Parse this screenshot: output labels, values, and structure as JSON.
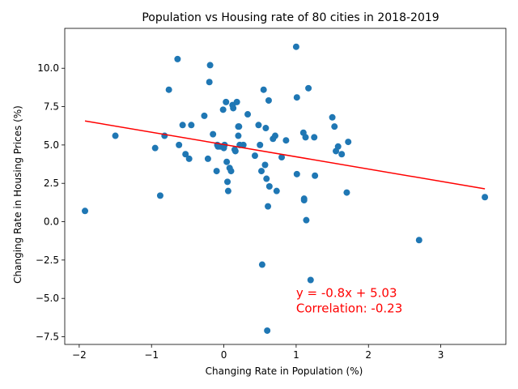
{
  "chart_data": {
    "type": "scatter",
    "title": "Population vs Housing rate of 80 cities in 2018-2019",
    "xlabel": "Changing Rate in Population (%)",
    "ylabel": "Changing Rate in Housing Prices (%)",
    "xlim": [
      -2.2,
      3.9
    ],
    "ylim": [
      -8.0,
      12.6
    ],
    "xticks": [
      -2,
      -1,
      0,
      1,
      2,
      3
    ],
    "yticks": [
      -7.5,
      -5.0,
      -2.5,
      0.0,
      2.5,
      5.0,
      7.5,
      10.0
    ],
    "xtick_labels": [
      "−2",
      "−1",
      "0",
      "1",
      "2",
      "3"
    ],
    "ytick_labels": [
      "−7.5",
      "−5.0",
      "−2.5",
      "0.0",
      "2.5",
      "5.0",
      "7.5",
      "10.0"
    ],
    "grid": false,
    "point_color": "#1f77b4",
    "line_color": "#ff0000",
    "regression": {
      "slope": -0.8,
      "intercept": 5.03,
      "x_range": [
        -1.92,
        3.61
      ]
    },
    "annotation": {
      "lines": [
        "y = -0.8x + 5.03",
        "Correlation: -0.23"
      ],
      "anchor": [
        1.0,
        -4.9
      ]
    },
    "points": [
      [
        -1.92,
        0.7
      ],
      [
        -1.5,
        5.6
      ],
      [
        -0.95,
        4.8
      ],
      [
        -0.88,
        1.7
      ],
      [
        -0.82,
        5.6
      ],
      [
        -0.76,
        8.6
      ],
      [
        -0.64,
        10.6
      ],
      [
        -0.62,
        5.0
      ],
      [
        -0.57,
        6.3
      ],
      [
        -0.53,
        4.4
      ],
      [
        -0.48,
        4.1
      ],
      [
        -0.45,
        6.3
      ],
      [
        -0.27,
        6.9
      ],
      [
        -0.22,
        4.1
      ],
      [
        -0.2,
        9.1
      ],
      [
        -0.19,
        10.2
      ],
      [
        -0.15,
        5.7
      ],
      [
        -0.1,
        3.3
      ],
      [
        -0.09,
        5.0
      ],
      [
        -0.05,
        4.9
      ],
      [
        -0.01,
        7.3
      ],
      [
        0.0,
        4.8
      ],
      [
        0.01,
        5.0
      ],
      [
        0.03,
        7.8
      ],
      [
        0.04,
        3.9
      ],
      [
        0.05,
        2.6
      ],
      [
        0.06,
        2.0
      ],
      [
        0.08,
        3.5
      ],
      [
        0.1,
        3.3
      ],
      [
        0.12,
        7.6
      ],
      [
        0.13,
        7.4
      ],
      [
        0.15,
        4.7
      ],
      [
        0.16,
        4.6
      ],
      [
        0.18,
        7.8
      ],
      [
        0.2,
        6.2
      ],
      [
        0.2,
        5.6
      ],
      [
        0.21,
        6.2
      ],
      [
        0.22,
        5.0
      ],
      [
        0.27,
        5.0
      ],
      [
        0.33,
        7.0
      ],
      [
        0.43,
        4.3
      ],
      [
        0.48,
        6.3
      ],
      [
        0.5,
        5.0
      ],
      [
        0.52,
        3.3
      ],
      [
        0.53,
        -2.8
      ],
      [
        0.55,
        8.6
      ],
      [
        0.57,
        3.7
      ],
      [
        0.58,
        6.1
      ],
      [
        0.59,
        2.8
      ],
      [
        0.6,
        -7.1
      ],
      [
        0.61,
        1.0
      ],
      [
        0.62,
        7.9
      ],
      [
        0.63,
        2.3
      ],
      [
        0.68,
        5.4
      ],
      [
        0.71,
        5.6
      ],
      [
        0.73,
        2.0
      ],
      [
        0.8,
        4.2
      ],
      [
        0.86,
        5.3
      ],
      [
        1.0,
        11.4
      ],
      [
        1.01,
        8.1
      ],
      [
        1.01,
        3.1
      ],
      [
        1.1,
        5.8
      ],
      [
        1.11,
        1.5
      ],
      [
        1.11,
        1.4
      ],
      [
        1.13,
        5.5
      ],
      [
        1.14,
        0.1
      ],
      [
        1.17,
        8.7
      ],
      [
        1.2,
        -3.8
      ],
      [
        1.25,
        5.5
      ],
      [
        1.26,
        3.0
      ],
      [
        1.5,
        6.8
      ],
      [
        1.53,
        6.2
      ],
      [
        1.55,
        4.6
      ],
      [
        1.58,
        4.9
      ],
      [
        1.63,
        4.4
      ],
      [
        1.7,
        1.9
      ],
      [
        1.72,
        5.2
      ],
      [
        2.7,
        -1.2
      ],
      [
        3.61,
        1.6
      ],
      [
        -0.08,
        4.9
      ]
    ]
  }
}
